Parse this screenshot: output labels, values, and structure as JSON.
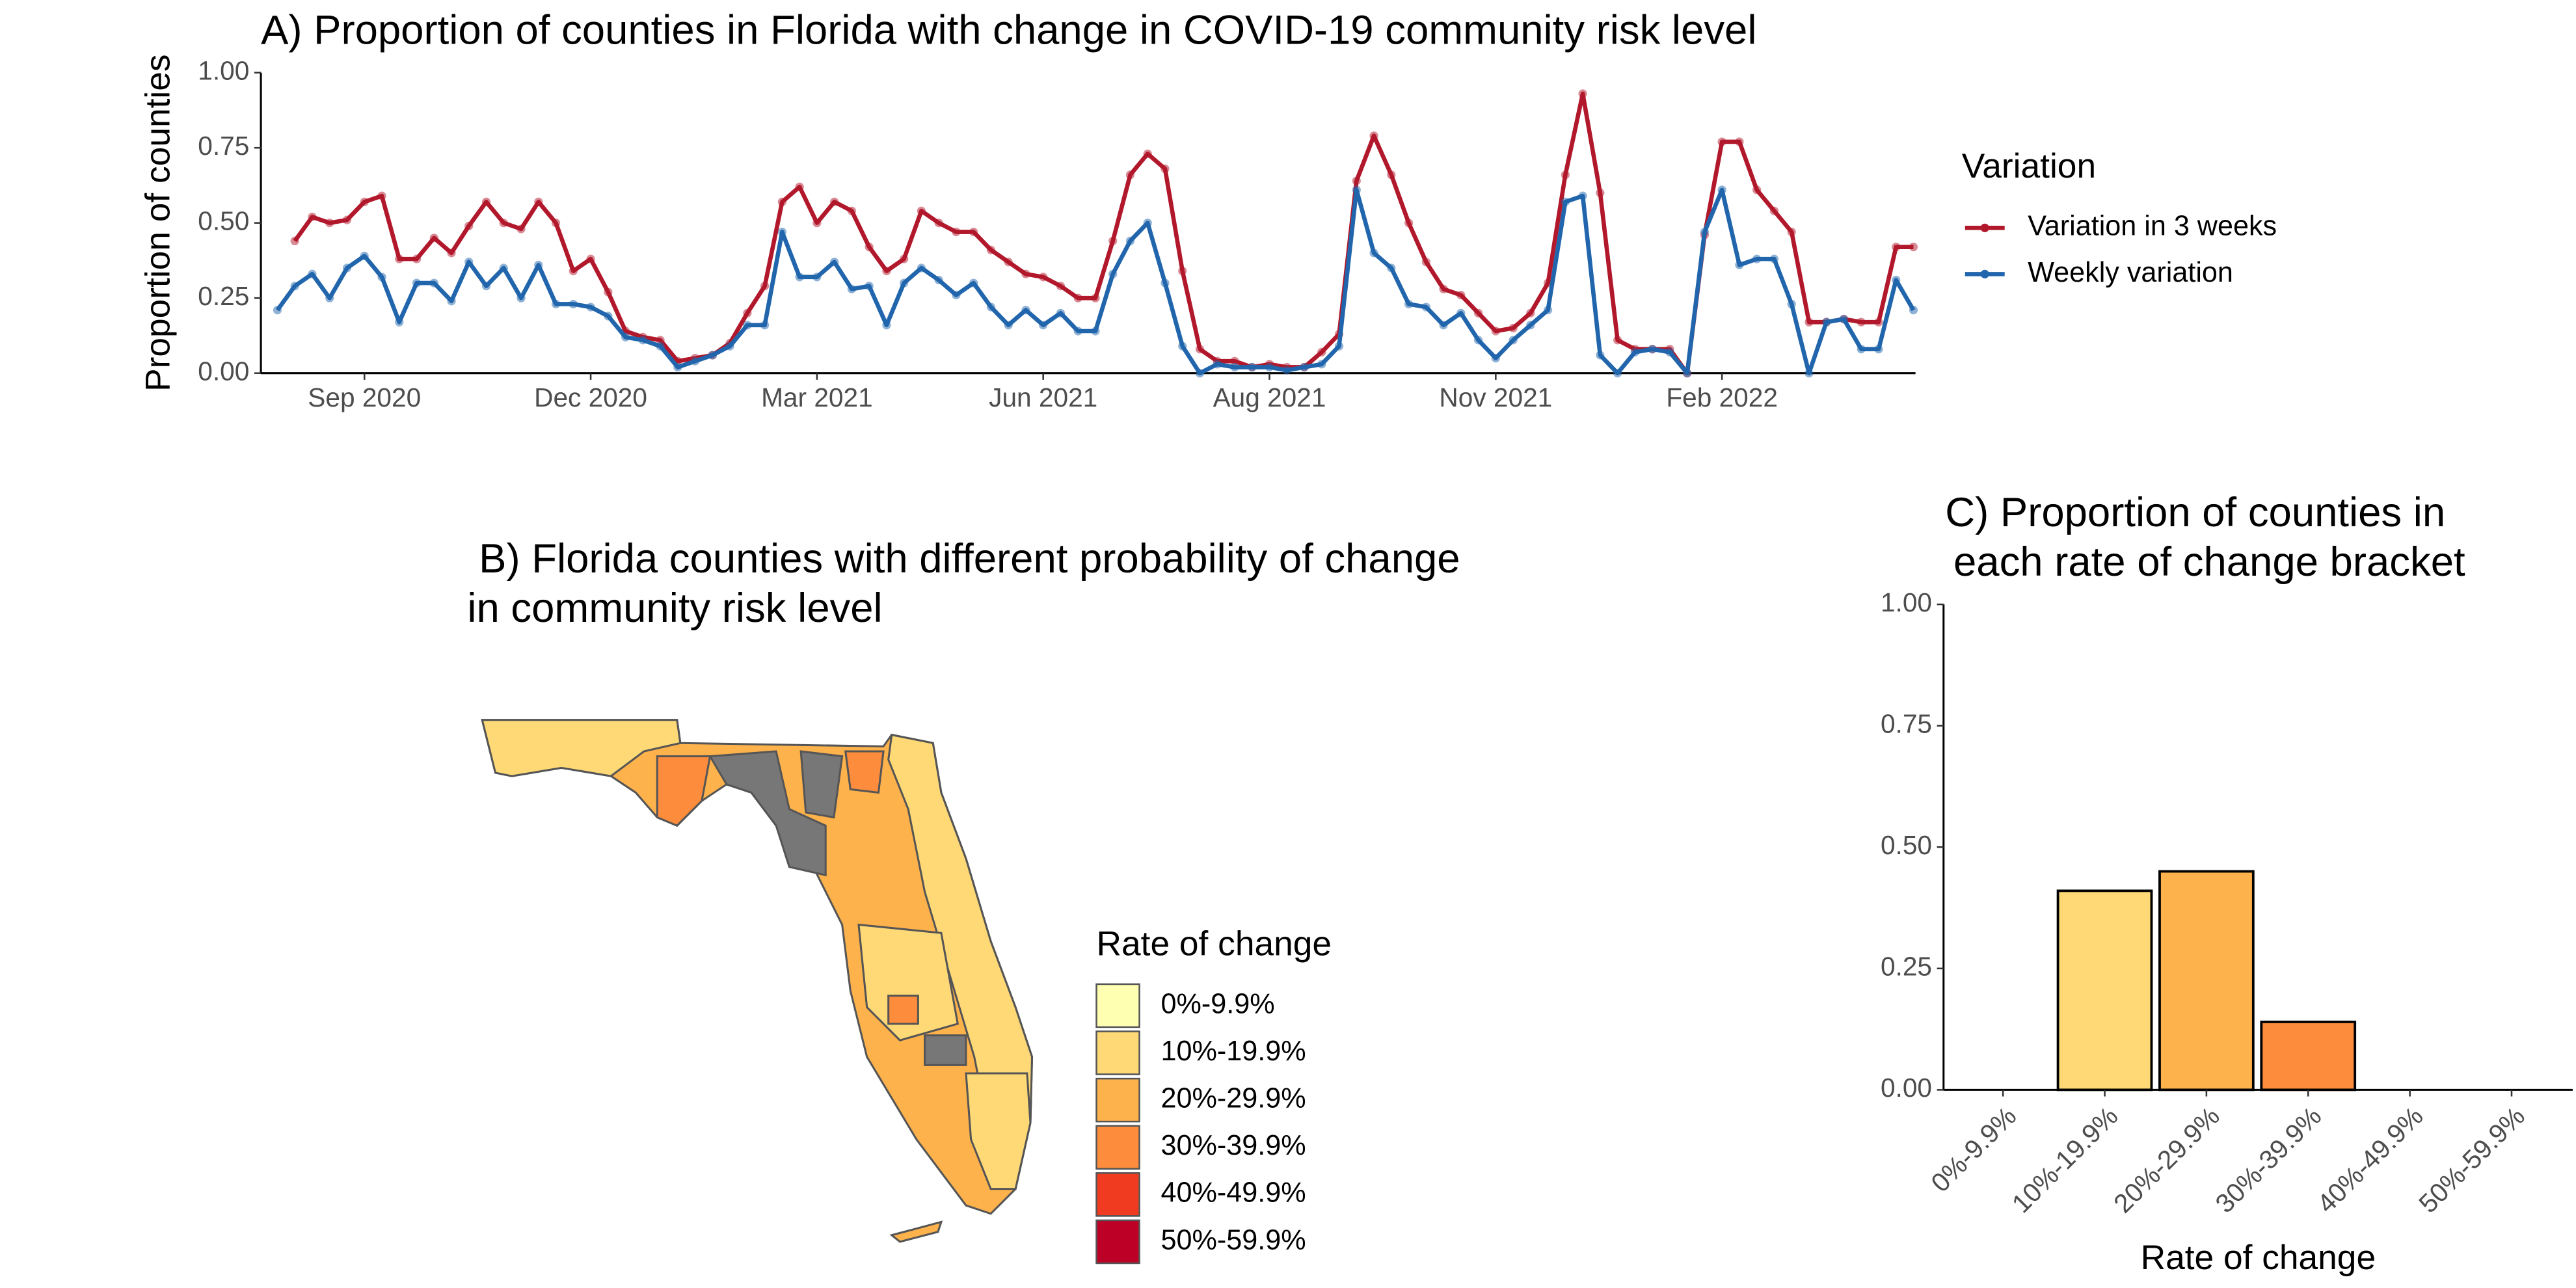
{
  "chart_data": [
    {
      "type": "line",
      "title": "A) Proportion of counties in Florida with change in COVID-19 community risk level",
      "y_label": "Proportion of counties",
      "legend_title": "Variation",
      "legend": "right",
      "categories": [
        null,
        null,
        null,
        null,
        null,
        "Sep 2020",
        null,
        null,
        null,
        null,
        null,
        null,
        null,
        null,
        null,
        null,
        null,
        null,
        "Dec 2020",
        null,
        null,
        null,
        null,
        null,
        null,
        null,
        null,
        null,
        null,
        null,
        null,
        "Mar 2021",
        null,
        null,
        null,
        null,
        null,
        null,
        null,
        null,
        null,
        null,
        null,
        null,
        "Jun 2021",
        null,
        null,
        null,
        null,
        null,
        null,
        null,
        null,
        null,
        null,
        null,
        null,
        "Aug 2021",
        null,
        null,
        null,
        null,
        null,
        null,
        null,
        null,
        null,
        null,
        null,
        null,
        "Nov 2021",
        null,
        null,
        null,
        null,
        null,
        null,
        null,
        null,
        null,
        null,
        null,
        null,
        "Feb 2022",
        null,
        null,
        null,
        null,
        null,
        null,
        null,
        null,
        null,
        null,
        null
      ],
      "series": [
        {
          "name": "Variation in 3 weeks",
          "color": "#b2182b",
          "values": [
            null,
            0.44,
            0.52,
            0.5,
            0.51,
            0.57,
            0.59,
            0.38,
            0.38,
            0.45,
            0.4,
            0.49,
            0.57,
            0.5,
            0.48,
            0.57,
            0.5,
            0.34,
            0.38,
            0.27,
            0.14,
            0.12,
            0.11,
            0.04,
            0.05,
            0.06,
            0.1,
            0.2,
            0.29,
            0.57,
            0.62,
            0.5,
            0.57,
            0.54,
            0.42,
            0.34,
            0.38,
            0.54,
            0.5,
            0.47,
            0.47,
            0.41,
            0.37,
            0.33,
            0.32,
            0.29,
            0.25,
            0.25,
            0.44,
            0.66,
            0.73,
            0.68,
            0.34,
            0.08,
            0.04,
            0.04,
            0.02,
            0.03,
            0.02,
            0.02,
            0.07,
            0.13,
            0.64,
            0.79,
            0.66,
            0.5,
            0.37,
            0.28,
            0.26,
            0.2,
            0.14,
            0.15,
            0.2,
            0.3,
            0.66,
            0.93,
            0.6,
            0.11,
            0.08,
            0.08,
            0.08,
            0.0,
            0.46,
            0.77,
            0.77,
            0.61,
            0.54,
            0.47,
            0.17,
            0.17,
            0.18,
            0.17,
            0.17,
            0.42,
            0.42
          ]
        },
        {
          "name": "Weekly variation",
          "color": "#2166ac",
          "values": [
            0.21,
            0.29,
            0.33,
            0.25,
            0.35,
            0.39,
            0.32,
            0.17,
            0.3,
            0.3,
            0.24,
            0.37,
            0.29,
            0.35,
            0.25,
            0.36,
            0.23,
            0.23,
            0.22,
            0.19,
            0.12,
            0.11,
            0.09,
            0.02,
            0.04,
            0.06,
            0.09,
            0.16,
            0.16,
            0.47,
            0.32,
            0.32,
            0.37,
            0.28,
            0.29,
            0.16,
            0.3,
            0.35,
            0.31,
            0.26,
            0.3,
            0.22,
            0.16,
            0.21,
            0.16,
            0.2,
            0.14,
            0.14,
            0.33,
            0.44,
            0.5,
            0.3,
            0.09,
            0.0,
            0.03,
            0.02,
            0.02,
            0.02,
            0.01,
            0.02,
            0.03,
            0.09,
            0.61,
            0.4,
            0.35,
            0.23,
            0.22,
            0.16,
            0.2,
            0.11,
            0.05,
            0.11,
            0.16,
            0.21,
            0.57,
            0.59,
            0.06,
            0.0,
            0.07,
            0.08,
            0.07,
            0.0,
            0.47,
            0.61,
            0.36,
            0.38,
            0.38,
            0.23,
            0.0,
            0.17,
            0.18,
            0.08,
            0.08,
            0.31,
            0.21
          ]
        }
      ],
      "ylim": [
        0,
        1
      ],
      "yticks": [
        {
          "value": 0,
          "label": "0.00"
        },
        {
          "value": 0.25,
          "label": "0.25"
        },
        {
          "value": 0.5,
          "label": "0.50"
        },
        {
          "value": 0.75,
          "label": "0.75"
        },
        {
          "value": 1,
          "label": "1.00"
        }
      ],
      "grid": false
    },
    {
      "type": "map",
      "title": [
        "B)  Florida counties with different probability of change",
        "in community risk level"
      ],
      "legend_title": "Rate of change",
      "legend_labels": [
        "0%-9.9%",
        "10%-19.9%",
        "20%-29.9%",
        "30%-39.9%",
        "40%-49.9%",
        "50%-59.9%"
      ],
      "colors": [
        "#ffffb2",
        "#fed976",
        "#feb24c",
        "#fd8d3c",
        "#f03b20",
        "#bd0026"
      ]
    },
    {
      "type": "bar",
      "title": [
        "C) Proportion of counties in",
        "each rate of change bracket"
      ],
      "x_label": "Rate of change",
      "categories": [
        "0%-9.9%",
        "10%-19.9%",
        "20%-29.9%",
        "30%-39.9%",
        "40%-49.9%",
        "50%-59.9%"
      ],
      "values": [
        0,
        0.41,
        0.45,
        0.14,
        0,
        0
      ],
      "colors": [
        "#ffffb2",
        "#fed976",
        "#feb24c",
        "#fd8d3c",
        "#f03b20",
        "#bd0026"
      ],
      "ylim": [
        0,
        1
      ],
      "yticks": [
        {
          "value": 0,
          "label": "0.00"
        },
        {
          "value": 0.25,
          "label": "0.25"
        },
        {
          "value": 0.5,
          "label": "0.50"
        },
        {
          "value": 0.75,
          "label": "0.75"
        },
        {
          "value": 1,
          "label": "1.00"
        }
      ],
      "grid": false
    }
  ]
}
